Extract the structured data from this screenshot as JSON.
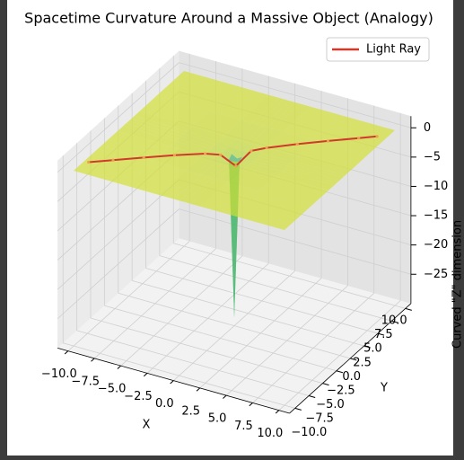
{
  "chart_data": {
    "type": "surface",
    "title": "Spacetime Curvature Around a Massive Object (Analogy)",
    "xlabel": "X",
    "ylabel": "Y",
    "zlabel": "Curved \"Z\" dimension",
    "colormap": "viridis",
    "alpha": 0.7,
    "grid": true,
    "legend": "upper right",
    "x": [
      -10,
      -5,
      -2,
      -1,
      -0.5,
      0,
      0.5,
      1,
      2,
      5,
      10
    ],
    "y": [
      -10,
      -5,
      -2,
      -1,
      -0.5,
      0,
      0.5,
      1,
      2,
      5,
      10
    ],
    "z": [
      [
        -0.07,
        -0.09,
        -0.1,
        -0.1,
        -0.1,
        -0.1,
        -0.1,
        -0.1,
        -0.1,
        -0.09,
        -0.07
      ],
      [
        -0.09,
        -0.14,
        -0.18,
        -0.19,
        -0.2,
        -0.2,
        -0.2,
        -0.19,
        -0.18,
        -0.14,
        -0.09
      ],
      [
        -0.1,
        -0.18,
        -0.35,
        -0.44,
        -0.48,
        -0.49,
        -0.48,
        -0.44,
        -0.35,
        -0.18,
        -0.1
      ],
      [
        -0.1,
        -0.19,
        -0.44,
        -0.69,
        -0.87,
        -0.97,
        -0.87,
        -0.69,
        -0.44,
        -0.19,
        -0.1
      ],
      [
        -0.1,
        -0.2,
        -0.48,
        -0.87,
        -1.35,
        -1.87,
        -1.35,
        -0.87,
        -0.48,
        -0.2,
        -0.1
      ],
      [
        -0.1,
        -0.2,
        -0.49,
        -0.97,
        -1.87,
        -28.57,
        -1.87,
        -0.97,
        -0.49,
        -0.2,
        -0.1
      ],
      [
        -0.1,
        -0.2,
        -0.48,
        -0.87,
        -1.35,
        -1.87,
        -1.35,
        -0.87,
        -0.48,
        -0.2,
        -0.1
      ],
      [
        -0.1,
        -0.19,
        -0.44,
        -0.69,
        -0.87,
        -0.97,
        -0.87,
        -0.69,
        -0.44,
        -0.19,
        -0.1
      ],
      [
        -0.1,
        -0.18,
        -0.35,
        -0.44,
        -0.48,
        -0.49,
        -0.48,
        -0.44,
        -0.35,
        -0.18,
        -0.1
      ],
      [
        -0.09,
        -0.14,
        -0.18,
        -0.19,
        -0.2,
        -0.2,
        -0.2,
        -0.19,
        -0.18,
        -0.14,
        -0.09
      ],
      [
        -0.07,
        -0.09,
        -0.1,
        -0.1,
        -0.1,
        -0.1,
        -0.1,
        -0.1,
        -0.1,
        -0.09,
        -0.07
      ]
    ],
    "series": [
      {
        "name": "Light Ray",
        "color": "#d03a2a",
        "x": [
          -9.6,
          -8,
          -6,
          -4,
          -2,
          -1,
          0,
          1,
          2,
          4,
          6,
          8,
          9.2
        ],
        "y": [
          -8.05,
          -6.66,
          -4.92,
          -3.18,
          -1.44,
          -0.57,
          0.3,
          1.17,
          2.04,
          3.78,
          5.52,
          7.26,
          8.3
        ],
        "z": [
          -0.08,
          -0.1,
          -0.13,
          -0.19,
          -0.4,
          -0.84,
          -2.99,
          -0.63,
          -0.35,
          -0.18,
          -0.12,
          -0.09,
          -0.08
        ]
      }
    ],
    "xlim": [
      -11,
      11
    ],
    "ylim": [
      -11,
      11
    ],
    "zlim": [
      -30,
      2
    ],
    "xticks": [
      {
        "value": -10,
        "label": "−10.0"
      },
      {
        "value": -7.5,
        "label": "−7.5"
      },
      {
        "value": -5,
        "label": "−5.0"
      },
      {
        "value": -2.5,
        "label": "−2.5"
      },
      {
        "value": 0,
        "label": "0.0"
      },
      {
        "value": 2.5,
        "label": "2.5"
      },
      {
        "value": 5,
        "label": "5.0"
      },
      {
        "value": 7.5,
        "label": "7.5"
      },
      {
        "value": 10,
        "label": "10.0"
      }
    ],
    "yticks": [
      {
        "value": -10,
        "label": "−10.0"
      },
      {
        "value": -7.5,
        "label": "−7.5"
      },
      {
        "value": -5,
        "label": "−5.0"
      },
      {
        "value": -2.5,
        "label": "−2.5"
      },
      {
        "value": 0,
        "label": "0.0"
      },
      {
        "value": 2.5,
        "label": "2.5"
      },
      {
        "value": 5,
        "label": "5.0"
      },
      {
        "value": 7.5,
        "label": "7.5"
      },
      {
        "value": 10,
        "label": "10.0"
      }
    ],
    "zticks": [
      0,
      {
        "value": -5,
        "label": "−5"
      },
      {
        "value": -10,
        "label": "−10"
      },
      {
        "value": -15,
        "label": "−15"
      },
      {
        "value": -20,
        "label": "−20"
      },
      {
        "value": -25,
        "label": "−25"
      }
    ]
  }
}
